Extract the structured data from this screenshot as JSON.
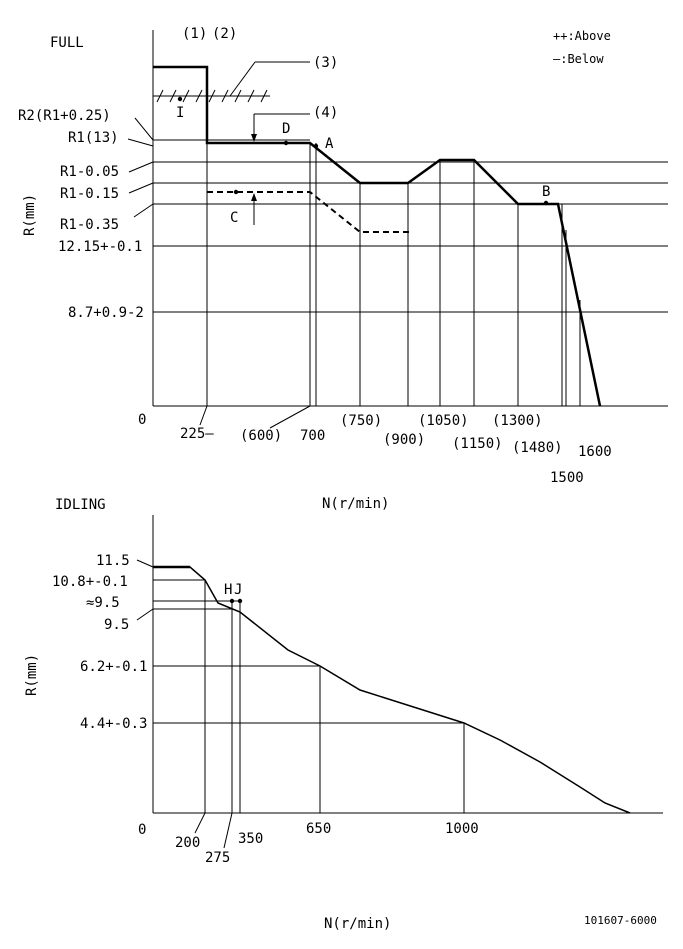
{
  "full": {
    "title": "FULL",
    "top_labels": [
      "(1)",
      "(2)"
    ],
    "callouts": [
      "(3)",
      "(4)"
    ],
    "legend": {
      "above": "++:Above",
      "below": "—:Below"
    },
    "y_axis_label": "R(mm)",
    "x_axis_label": "N(r/min)",
    "origin": "0",
    "y_ticks": [
      "R2(R1+0.25)",
      "R1(13)",
      "R1-0.05",
      "R1-0.15",
      "R1-0.35",
      "12.15+-0.1",
      "8.7+0.9-2"
    ],
    "x_ticks": [
      "225—",
      "(600)",
      "700",
      "(750)",
      "(900)",
      "(1050)",
      "(1150)",
      "(1300)",
      "(1480)",
      "1500",
      "1600"
    ],
    "points": [
      "I",
      "D",
      "A",
      "C",
      "B"
    ]
  },
  "idling": {
    "title": "IDLING",
    "y_axis_label": "R(mm)",
    "x_axis_label": "N(r/min)",
    "origin": "0",
    "y_ticks": [
      "11.5",
      "10.8+-0.1",
      "≈9.5",
      "9.5",
      "6.2+-0.1",
      "4.4+-0.3"
    ],
    "x_ticks": [
      "200",
      "275",
      "350",
      "650",
      "1000"
    ],
    "points": [
      "H",
      "J"
    ]
  },
  "doc_number": "101607-6000"
}
